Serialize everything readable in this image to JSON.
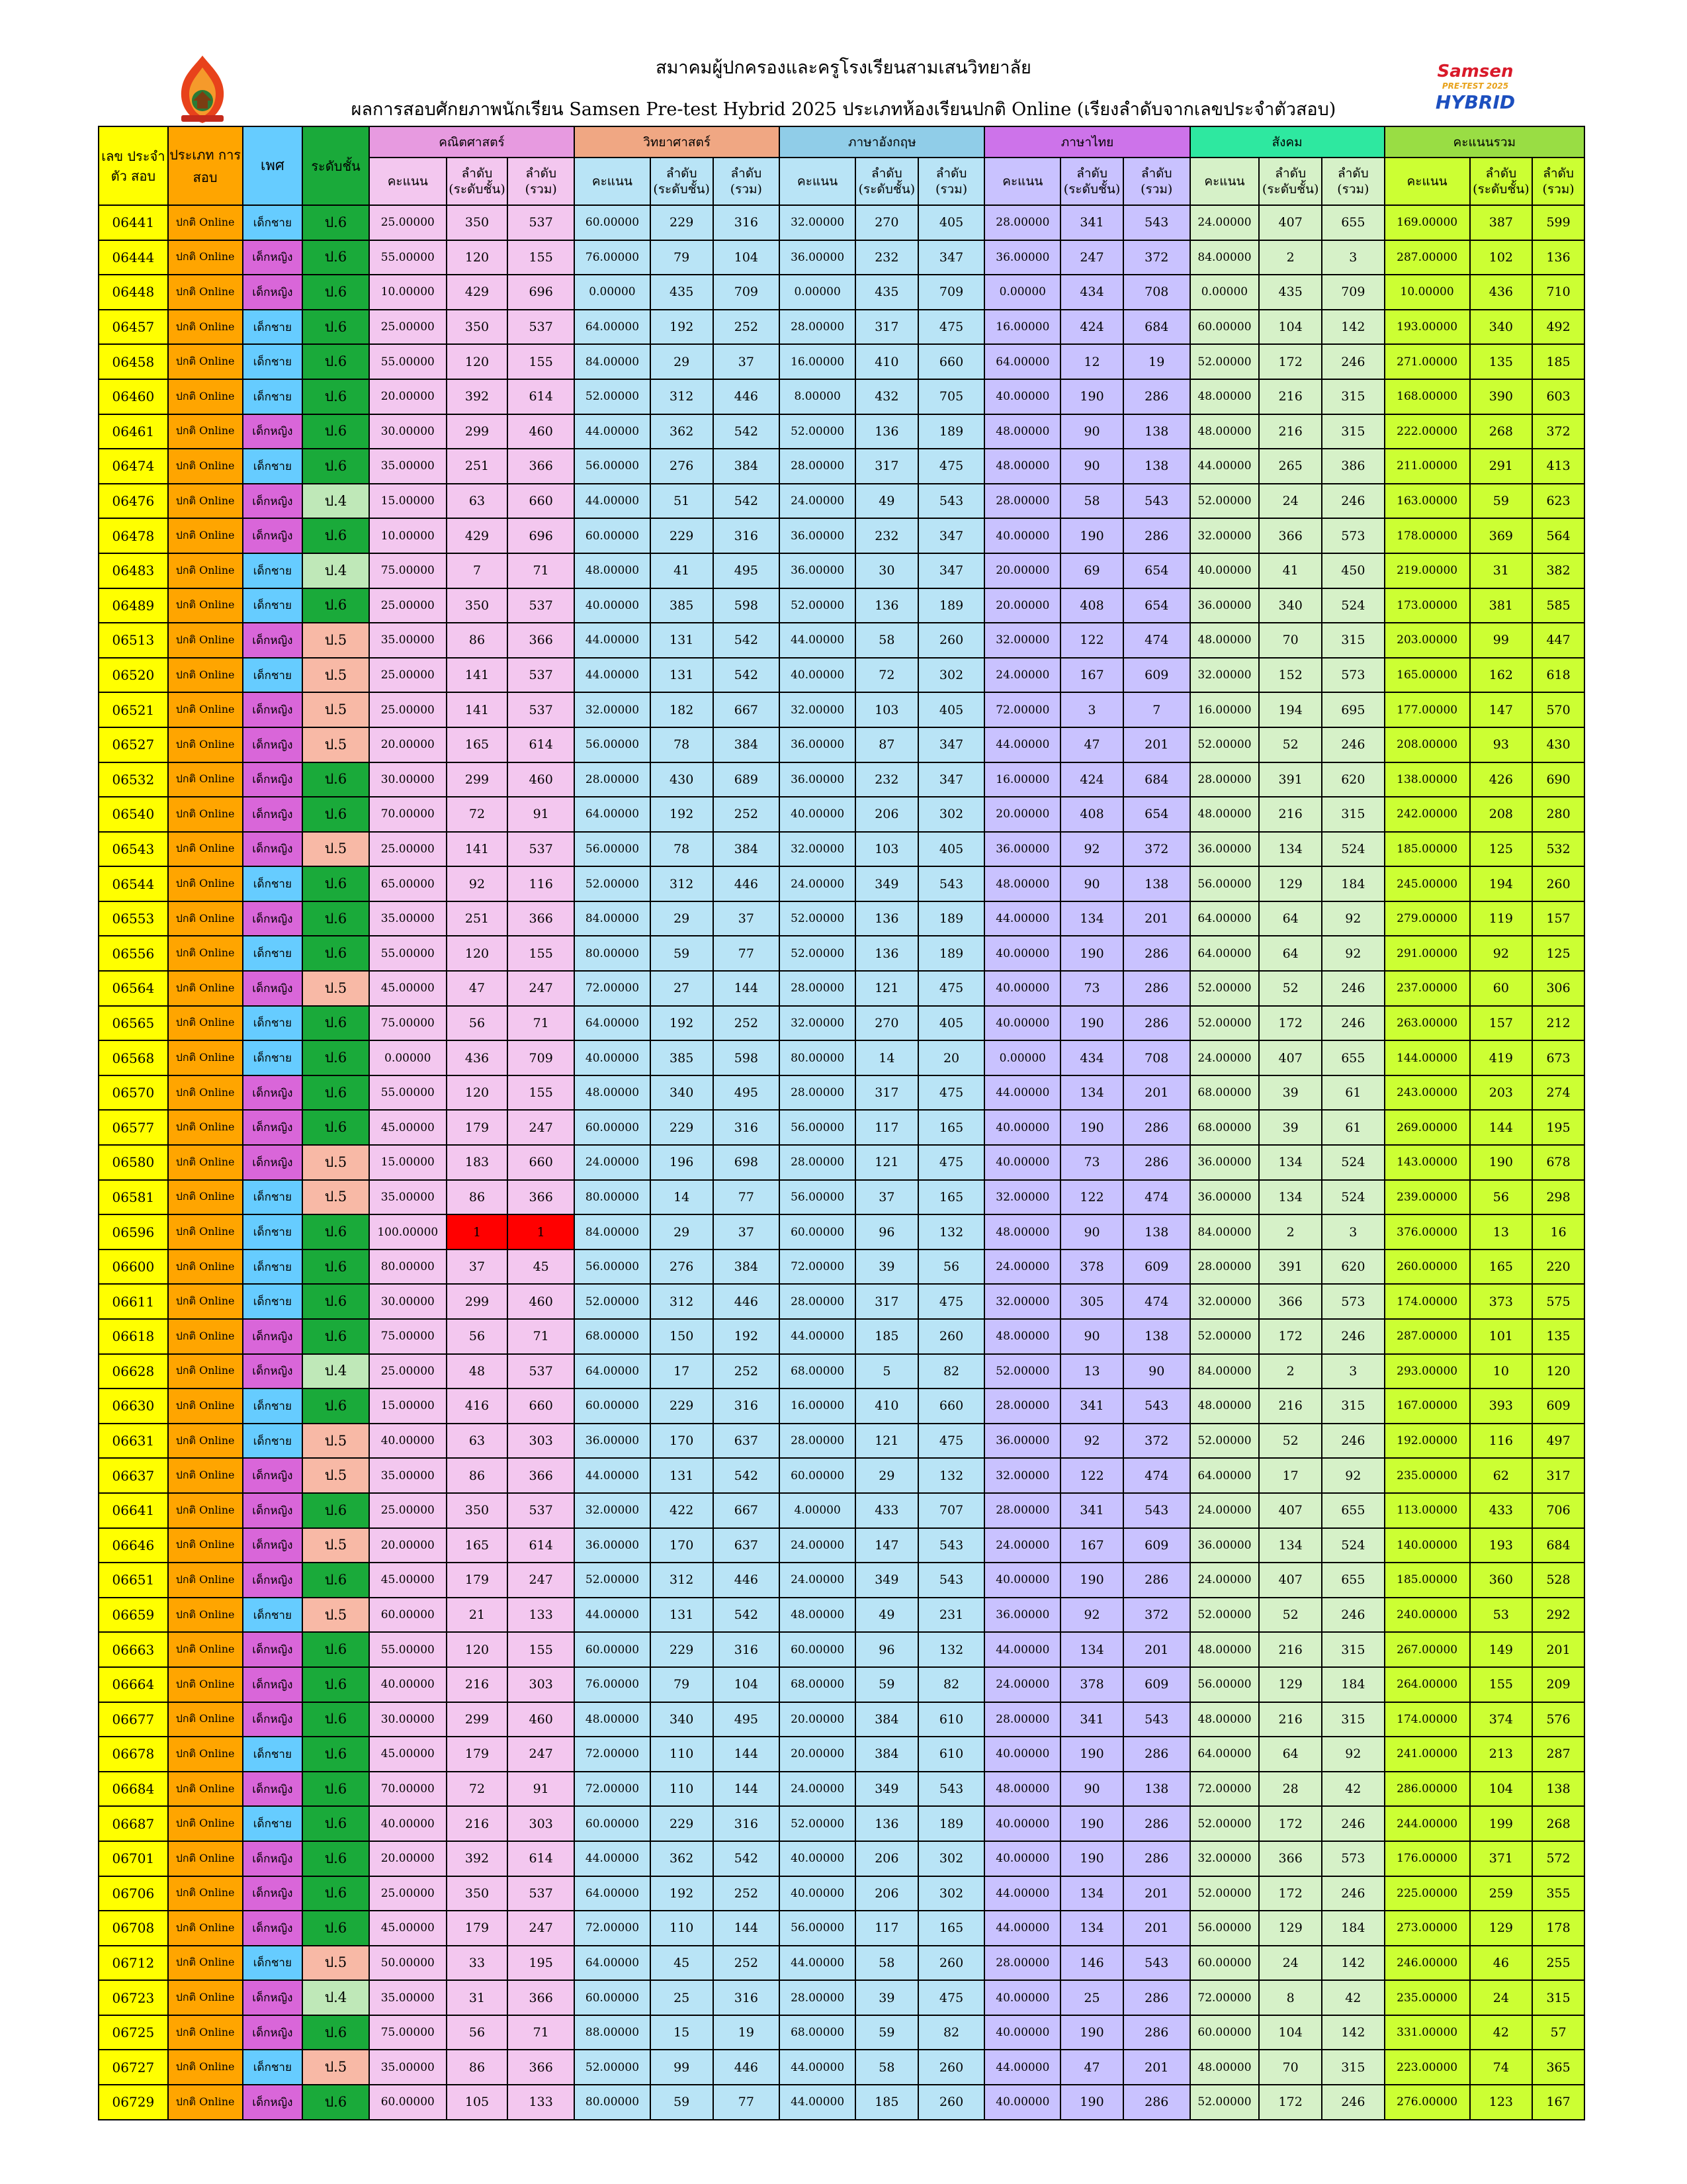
{
  "header": {
    "title_line1": "สมาคมผู้ปกครองและครูโรงเรียนสามเสนวิทยาลัย",
    "title_line2": "ผลการสอบศักยภาพนักเรียน Samsen Pre-test Hybrid 2025 ประเภทห้องเรียนปกติ Online (เรียงลำดับจากเลขประจำตัวสอบ)",
    "logo_right_lines": [
      "Samsen",
      "PRE-TEST 2025",
      "HYBRID"
    ]
  },
  "columns": {
    "exam_no": "เลข ประจำตัว สอบ",
    "exam_type": "ประเภท การสอบ",
    "gender": "เพศ",
    "level": "ระดับชั้น",
    "subjects": [
      "คณิตศาสตร์",
      "วิทยาศาสตร์",
      "ภาษาอังกฤษ",
      "ภาษาไทย",
      "สังคม",
      "คะแนนรวม"
    ],
    "score": "คะแนน",
    "rank_level_1": "ลำดับ",
    "rank_level_2": "(ระดับชั้น)",
    "rank_all_1": "ลำดับ",
    "rank_all_2": "(รวม)"
  },
  "colors": {
    "exam_no": "#ffff00",
    "exam_type": "#ffa500",
    "boy": "#66ccff",
    "girl": "#d966d9",
    "p6": "#1aaa3a",
    "p5": "#f8b9a6",
    "p4": "#bfe8b8",
    "math": "#f3c7ef",
    "science": "#b9e4f6",
    "english": "#b9e4f6",
    "thai": "#c9c2ff",
    "social": "#d6f1c8",
    "total": "#ccff33",
    "highlight": "#ff0000"
  },
  "rows": [
    [
      "06441",
      "ปกติ Online",
      "เด็กชาย",
      "ป.6",
      "25.00000",
      "350",
      "537",
      "60.00000",
      "229",
      "316",
      "32.00000",
      "270",
      "405",
      "28.00000",
      "341",
      "543",
      "24.00000",
      "407",
      "655",
      "169.00000",
      "387",
      "599"
    ],
    [
      "06444",
      "ปกติ Online",
      "เด็กหญิง",
      "ป.6",
      "55.00000",
      "120",
      "155",
      "76.00000",
      "79",
      "104",
      "36.00000",
      "232",
      "347",
      "36.00000",
      "247",
      "372",
      "84.00000",
      "2",
      "3",
      "287.00000",
      "102",
      "136"
    ],
    [
      "06448",
      "ปกติ Online",
      "เด็กหญิง",
      "ป.6",
      "10.00000",
      "429",
      "696",
      "0.00000",
      "435",
      "709",
      "0.00000",
      "435",
      "709",
      "0.00000",
      "434",
      "708",
      "0.00000",
      "435",
      "709",
      "10.00000",
      "436",
      "710"
    ],
    [
      "06457",
      "ปกติ Online",
      "เด็กชาย",
      "ป.6",
      "25.00000",
      "350",
      "537",
      "64.00000",
      "192",
      "252",
      "28.00000",
      "317",
      "475",
      "16.00000",
      "424",
      "684",
      "60.00000",
      "104",
      "142",
      "193.00000",
      "340",
      "492"
    ],
    [
      "06458",
      "ปกติ Online",
      "เด็กชาย",
      "ป.6",
      "55.00000",
      "120",
      "155",
      "84.00000",
      "29",
      "37",
      "16.00000",
      "410",
      "660",
      "64.00000",
      "12",
      "19",
      "52.00000",
      "172",
      "246",
      "271.00000",
      "135",
      "185"
    ],
    [
      "06460",
      "ปกติ Online",
      "เด็กชาย",
      "ป.6",
      "20.00000",
      "392",
      "614",
      "52.00000",
      "312",
      "446",
      "8.00000",
      "432",
      "705",
      "40.00000",
      "190",
      "286",
      "48.00000",
      "216",
      "315",
      "168.00000",
      "390",
      "603"
    ],
    [
      "06461",
      "ปกติ Online",
      "เด็กหญิง",
      "ป.6",
      "30.00000",
      "299",
      "460",
      "44.00000",
      "362",
      "542",
      "52.00000",
      "136",
      "189",
      "48.00000",
      "90",
      "138",
      "48.00000",
      "216",
      "315",
      "222.00000",
      "268",
      "372"
    ],
    [
      "06474",
      "ปกติ Online",
      "เด็กชาย",
      "ป.6",
      "35.00000",
      "251",
      "366",
      "56.00000",
      "276",
      "384",
      "28.00000",
      "317",
      "475",
      "48.00000",
      "90",
      "138",
      "44.00000",
      "265",
      "386",
      "211.00000",
      "291",
      "413"
    ],
    [
      "06476",
      "ปกติ Online",
      "เด็กหญิง",
      "ป.4",
      "15.00000",
      "63",
      "660",
      "44.00000",
      "51",
      "542",
      "24.00000",
      "49",
      "543",
      "28.00000",
      "58",
      "543",
      "52.00000",
      "24",
      "246",
      "163.00000",
      "59",
      "623"
    ],
    [
      "06478",
      "ปกติ Online",
      "เด็กหญิง",
      "ป.6",
      "10.00000",
      "429",
      "696",
      "60.00000",
      "229",
      "316",
      "36.00000",
      "232",
      "347",
      "40.00000",
      "190",
      "286",
      "32.00000",
      "366",
      "573",
      "178.00000",
      "369",
      "564"
    ],
    [
      "06483",
      "ปกติ Online",
      "เด็กชาย",
      "ป.4",
      "75.00000",
      "7",
      "71",
      "48.00000",
      "41",
      "495",
      "36.00000",
      "30",
      "347",
      "20.00000",
      "69",
      "654",
      "40.00000",
      "41",
      "450",
      "219.00000",
      "31",
      "382"
    ],
    [
      "06489",
      "ปกติ Online",
      "เด็กชาย",
      "ป.6",
      "25.00000",
      "350",
      "537",
      "40.00000",
      "385",
      "598",
      "52.00000",
      "136",
      "189",
      "20.00000",
      "408",
      "654",
      "36.00000",
      "340",
      "524",
      "173.00000",
      "381",
      "585"
    ],
    [
      "06513",
      "ปกติ Online",
      "เด็กหญิง",
      "ป.5",
      "35.00000",
      "86",
      "366",
      "44.00000",
      "131",
      "542",
      "44.00000",
      "58",
      "260",
      "32.00000",
      "122",
      "474",
      "48.00000",
      "70",
      "315",
      "203.00000",
      "99",
      "447"
    ],
    [
      "06520",
      "ปกติ Online",
      "เด็กชาย",
      "ป.5",
      "25.00000",
      "141",
      "537",
      "44.00000",
      "131",
      "542",
      "40.00000",
      "72",
      "302",
      "24.00000",
      "167",
      "609",
      "32.00000",
      "152",
      "573",
      "165.00000",
      "162",
      "618"
    ],
    [
      "06521",
      "ปกติ Online",
      "เด็กหญิง",
      "ป.5",
      "25.00000",
      "141",
      "537",
      "32.00000",
      "182",
      "667",
      "32.00000",
      "103",
      "405",
      "72.00000",
      "3",
      "7",
      "16.00000",
      "194",
      "695",
      "177.00000",
      "147",
      "570"
    ],
    [
      "06527",
      "ปกติ Online",
      "เด็กหญิง",
      "ป.5",
      "20.00000",
      "165",
      "614",
      "56.00000",
      "78",
      "384",
      "36.00000",
      "87",
      "347",
      "44.00000",
      "47",
      "201",
      "52.00000",
      "52",
      "246",
      "208.00000",
      "93",
      "430"
    ],
    [
      "06532",
      "ปกติ Online",
      "เด็กหญิง",
      "ป.6",
      "30.00000",
      "299",
      "460",
      "28.00000",
      "430",
      "689",
      "36.00000",
      "232",
      "347",
      "16.00000",
      "424",
      "684",
      "28.00000",
      "391",
      "620",
      "138.00000",
      "426",
      "690"
    ],
    [
      "06540",
      "ปกติ Online",
      "เด็กหญิง",
      "ป.6",
      "70.00000",
      "72",
      "91",
      "64.00000",
      "192",
      "252",
      "40.00000",
      "206",
      "302",
      "20.00000",
      "408",
      "654",
      "48.00000",
      "216",
      "315",
      "242.00000",
      "208",
      "280"
    ],
    [
      "06543",
      "ปกติ Online",
      "เด็กหญิง",
      "ป.5",
      "25.00000",
      "141",
      "537",
      "56.00000",
      "78",
      "384",
      "32.00000",
      "103",
      "405",
      "36.00000",
      "92",
      "372",
      "36.00000",
      "134",
      "524",
      "185.00000",
      "125",
      "532"
    ],
    [
      "06544",
      "ปกติ Online",
      "เด็กชาย",
      "ป.6",
      "65.00000",
      "92",
      "116",
      "52.00000",
      "312",
      "446",
      "24.00000",
      "349",
      "543",
      "48.00000",
      "90",
      "138",
      "56.00000",
      "129",
      "184",
      "245.00000",
      "194",
      "260"
    ],
    [
      "06553",
      "ปกติ Online",
      "เด็กหญิง",
      "ป.6",
      "35.00000",
      "251",
      "366",
      "84.00000",
      "29",
      "37",
      "52.00000",
      "136",
      "189",
      "44.00000",
      "134",
      "201",
      "64.00000",
      "64",
      "92",
      "279.00000",
      "119",
      "157"
    ],
    [
      "06556",
      "ปกติ Online",
      "เด็กชาย",
      "ป.6",
      "55.00000",
      "120",
      "155",
      "80.00000",
      "59",
      "77",
      "52.00000",
      "136",
      "189",
      "40.00000",
      "190",
      "286",
      "64.00000",
      "64",
      "92",
      "291.00000",
      "92",
      "125"
    ],
    [
      "06564",
      "ปกติ Online",
      "เด็กหญิง",
      "ป.5",
      "45.00000",
      "47",
      "247",
      "72.00000",
      "27",
      "144",
      "28.00000",
      "121",
      "475",
      "40.00000",
      "73",
      "286",
      "52.00000",
      "52",
      "246",
      "237.00000",
      "60",
      "306"
    ],
    [
      "06565",
      "ปกติ Online",
      "เด็กชาย",
      "ป.6",
      "75.00000",
      "56",
      "71",
      "64.00000",
      "192",
      "252",
      "32.00000",
      "270",
      "405",
      "40.00000",
      "190",
      "286",
      "52.00000",
      "172",
      "246",
      "263.00000",
      "157",
      "212"
    ],
    [
      "06568",
      "ปกติ Online",
      "เด็กชาย",
      "ป.6",
      "0.00000",
      "436",
      "709",
      "40.00000",
      "385",
      "598",
      "80.00000",
      "14",
      "20",
      "0.00000",
      "434",
      "708",
      "24.00000",
      "407",
      "655",
      "144.00000",
      "419",
      "673"
    ],
    [
      "06570",
      "ปกติ Online",
      "เด็กหญิง",
      "ป.6",
      "55.00000",
      "120",
      "155",
      "48.00000",
      "340",
      "495",
      "28.00000",
      "317",
      "475",
      "44.00000",
      "134",
      "201",
      "68.00000",
      "39",
      "61",
      "243.00000",
      "203",
      "274"
    ],
    [
      "06577",
      "ปกติ Online",
      "เด็กหญิง",
      "ป.6",
      "45.00000",
      "179",
      "247",
      "60.00000",
      "229",
      "316",
      "56.00000",
      "117",
      "165",
      "40.00000",
      "190",
      "286",
      "68.00000",
      "39",
      "61",
      "269.00000",
      "144",
      "195"
    ],
    [
      "06580",
      "ปกติ Online",
      "เด็กหญิง",
      "ป.5",
      "15.00000",
      "183",
      "660",
      "24.00000",
      "196",
      "698",
      "28.00000",
      "121",
      "475",
      "40.00000",
      "73",
      "286",
      "36.00000",
      "134",
      "524",
      "143.00000",
      "190",
      "678"
    ],
    [
      "06581",
      "ปกติ Online",
      "เด็กชาย",
      "ป.5",
      "35.00000",
      "86",
      "366",
      "80.00000",
      "14",
      "77",
      "56.00000",
      "37",
      "165",
      "32.00000",
      "122",
      "474",
      "36.00000",
      "134",
      "524",
      "239.00000",
      "56",
      "298"
    ],
    [
      "06596",
      "ปกติ Online",
      "เด็กชาย",
      "ป.6",
      "100.00000",
      "1",
      "1",
      "84.00000",
      "29",
      "37",
      "60.00000",
      "96",
      "132",
      "48.00000",
      "90",
      "138",
      "84.00000",
      "2",
      "3",
      "376.00000",
      "13",
      "16"
    ],
    [
      "06600",
      "ปกติ Online",
      "เด็กชาย",
      "ป.6",
      "80.00000",
      "37",
      "45",
      "56.00000",
      "276",
      "384",
      "72.00000",
      "39",
      "56",
      "24.00000",
      "378",
      "609",
      "28.00000",
      "391",
      "620",
      "260.00000",
      "165",
      "220"
    ],
    [
      "06611",
      "ปกติ Online",
      "เด็กชาย",
      "ป.6",
      "30.00000",
      "299",
      "460",
      "52.00000",
      "312",
      "446",
      "28.00000",
      "317",
      "475",
      "32.00000",
      "305",
      "474",
      "32.00000",
      "366",
      "573",
      "174.00000",
      "373",
      "575"
    ],
    [
      "06618",
      "ปกติ Online",
      "เด็กหญิง",
      "ป.6",
      "75.00000",
      "56",
      "71",
      "68.00000",
      "150",
      "192",
      "44.00000",
      "185",
      "260",
      "48.00000",
      "90",
      "138",
      "52.00000",
      "172",
      "246",
      "287.00000",
      "101",
      "135"
    ],
    [
      "06628",
      "ปกติ Online",
      "เด็กหญิง",
      "ป.4",
      "25.00000",
      "48",
      "537",
      "64.00000",
      "17",
      "252",
      "68.00000",
      "5",
      "82",
      "52.00000",
      "13",
      "90",
      "84.00000",
      "2",
      "3",
      "293.00000",
      "10",
      "120"
    ],
    [
      "06630",
      "ปกติ Online",
      "เด็กชาย",
      "ป.6",
      "15.00000",
      "416",
      "660",
      "60.00000",
      "229",
      "316",
      "16.00000",
      "410",
      "660",
      "28.00000",
      "341",
      "543",
      "48.00000",
      "216",
      "315",
      "167.00000",
      "393",
      "609"
    ],
    [
      "06631",
      "ปกติ Online",
      "เด็กชาย",
      "ป.5",
      "40.00000",
      "63",
      "303",
      "36.00000",
      "170",
      "637",
      "28.00000",
      "121",
      "475",
      "36.00000",
      "92",
      "372",
      "52.00000",
      "52",
      "246",
      "192.00000",
      "116",
      "497"
    ],
    [
      "06637",
      "ปกติ Online",
      "เด็กหญิง",
      "ป.5",
      "35.00000",
      "86",
      "366",
      "44.00000",
      "131",
      "542",
      "60.00000",
      "29",
      "132",
      "32.00000",
      "122",
      "474",
      "64.00000",
      "17",
      "92",
      "235.00000",
      "62",
      "317"
    ],
    [
      "06641",
      "ปกติ Online",
      "เด็กหญิง",
      "ป.6",
      "25.00000",
      "350",
      "537",
      "32.00000",
      "422",
      "667",
      "4.00000",
      "433",
      "707",
      "28.00000",
      "341",
      "543",
      "24.00000",
      "407",
      "655",
      "113.00000",
      "433",
      "706"
    ],
    [
      "06646",
      "ปกติ Online",
      "เด็กหญิง",
      "ป.5",
      "20.00000",
      "165",
      "614",
      "36.00000",
      "170",
      "637",
      "24.00000",
      "147",
      "543",
      "24.00000",
      "167",
      "609",
      "36.00000",
      "134",
      "524",
      "140.00000",
      "193",
      "684"
    ],
    [
      "06651",
      "ปกติ Online",
      "เด็กหญิง",
      "ป.6",
      "45.00000",
      "179",
      "247",
      "52.00000",
      "312",
      "446",
      "24.00000",
      "349",
      "543",
      "40.00000",
      "190",
      "286",
      "24.00000",
      "407",
      "655",
      "185.00000",
      "360",
      "528"
    ],
    [
      "06659",
      "ปกติ Online",
      "เด็กชาย",
      "ป.5",
      "60.00000",
      "21",
      "133",
      "44.00000",
      "131",
      "542",
      "48.00000",
      "49",
      "231",
      "36.00000",
      "92",
      "372",
      "52.00000",
      "52",
      "246",
      "240.00000",
      "53",
      "292"
    ],
    [
      "06663",
      "ปกติ Online",
      "เด็กหญิง",
      "ป.6",
      "55.00000",
      "120",
      "155",
      "60.00000",
      "229",
      "316",
      "60.00000",
      "96",
      "132",
      "44.00000",
      "134",
      "201",
      "48.00000",
      "216",
      "315",
      "267.00000",
      "149",
      "201"
    ],
    [
      "06664",
      "ปกติ Online",
      "เด็กหญิง",
      "ป.6",
      "40.00000",
      "216",
      "303",
      "76.00000",
      "79",
      "104",
      "68.00000",
      "59",
      "82",
      "24.00000",
      "378",
      "609",
      "56.00000",
      "129",
      "184",
      "264.00000",
      "155",
      "209"
    ],
    [
      "06677",
      "ปกติ Online",
      "เด็กหญิง",
      "ป.6",
      "30.00000",
      "299",
      "460",
      "48.00000",
      "340",
      "495",
      "20.00000",
      "384",
      "610",
      "28.00000",
      "341",
      "543",
      "48.00000",
      "216",
      "315",
      "174.00000",
      "374",
      "576"
    ],
    [
      "06678",
      "ปกติ Online",
      "เด็กชาย",
      "ป.6",
      "45.00000",
      "179",
      "247",
      "72.00000",
      "110",
      "144",
      "20.00000",
      "384",
      "610",
      "40.00000",
      "190",
      "286",
      "64.00000",
      "64",
      "92",
      "241.00000",
      "213",
      "287"
    ],
    [
      "06684",
      "ปกติ Online",
      "เด็กหญิง",
      "ป.6",
      "70.00000",
      "72",
      "91",
      "72.00000",
      "110",
      "144",
      "24.00000",
      "349",
      "543",
      "48.00000",
      "90",
      "138",
      "72.00000",
      "28",
      "42",
      "286.00000",
      "104",
      "138"
    ],
    [
      "06687",
      "ปกติ Online",
      "เด็กชาย",
      "ป.6",
      "40.00000",
      "216",
      "303",
      "60.00000",
      "229",
      "316",
      "52.00000",
      "136",
      "189",
      "40.00000",
      "190",
      "286",
      "52.00000",
      "172",
      "246",
      "244.00000",
      "199",
      "268"
    ],
    [
      "06701",
      "ปกติ Online",
      "เด็กหญิง",
      "ป.6",
      "20.00000",
      "392",
      "614",
      "44.00000",
      "362",
      "542",
      "40.00000",
      "206",
      "302",
      "40.00000",
      "190",
      "286",
      "32.00000",
      "366",
      "573",
      "176.00000",
      "371",
      "572"
    ],
    [
      "06706",
      "ปกติ Online",
      "เด็กหญิง",
      "ป.6",
      "25.00000",
      "350",
      "537",
      "64.00000",
      "192",
      "252",
      "40.00000",
      "206",
      "302",
      "44.00000",
      "134",
      "201",
      "52.00000",
      "172",
      "246",
      "225.00000",
      "259",
      "355"
    ],
    [
      "06708",
      "ปกติ Online",
      "เด็กหญิง",
      "ป.6",
      "45.00000",
      "179",
      "247",
      "72.00000",
      "110",
      "144",
      "56.00000",
      "117",
      "165",
      "44.00000",
      "134",
      "201",
      "56.00000",
      "129",
      "184",
      "273.00000",
      "129",
      "178"
    ],
    [
      "06712",
      "ปกติ Online",
      "เด็กชาย",
      "ป.5",
      "50.00000",
      "33",
      "195",
      "64.00000",
      "45",
      "252",
      "44.00000",
      "58",
      "260",
      "28.00000",
      "146",
      "543",
      "60.00000",
      "24",
      "142",
      "246.00000",
      "46",
      "255"
    ],
    [
      "06723",
      "ปกติ Online",
      "เด็กหญิง",
      "ป.4",
      "35.00000",
      "31",
      "366",
      "60.00000",
      "25",
      "316",
      "28.00000",
      "39",
      "475",
      "40.00000",
      "25",
      "286",
      "72.00000",
      "8",
      "42",
      "235.00000",
      "24",
      "315"
    ],
    [
      "06725",
      "ปกติ Online",
      "เด็กหญิง",
      "ป.6",
      "75.00000",
      "56",
      "71",
      "88.00000",
      "15",
      "19",
      "68.00000",
      "59",
      "82",
      "40.00000",
      "190",
      "286",
      "60.00000",
      "104",
      "142",
      "331.00000",
      "42",
      "57"
    ],
    [
      "06727",
      "ปกติ Online",
      "เด็กชาย",
      "ป.5",
      "35.00000",
      "86",
      "366",
      "52.00000",
      "99",
      "446",
      "44.00000",
      "58",
      "260",
      "44.00000",
      "47",
      "201",
      "48.00000",
      "70",
      "315",
      "223.00000",
      "74",
      "365"
    ],
    [
      "06729",
      "ปกติ Online",
      "เด็กหญิง",
      "ป.6",
      "60.00000",
      "105",
      "133",
      "80.00000",
      "59",
      "77",
      "44.00000",
      "185",
      "260",
      "40.00000",
      "190",
      "286",
      "52.00000",
      "172",
      "246",
      "276.00000",
      "123",
      "167"
    ]
  ]
}
